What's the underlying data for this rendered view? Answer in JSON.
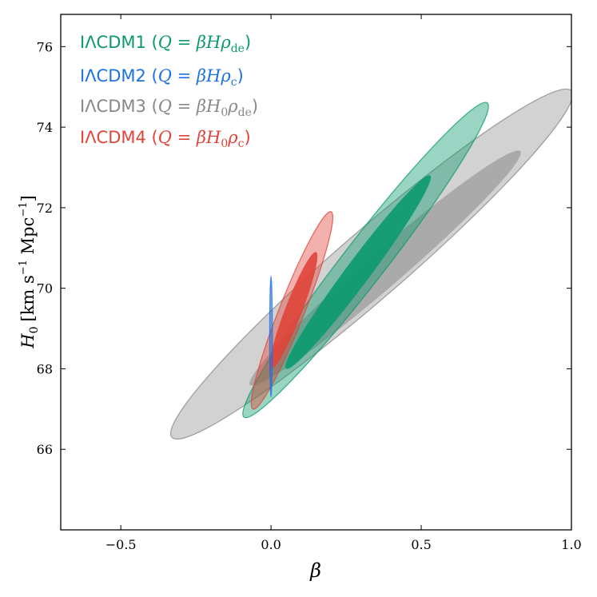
{
  "chart_data": {
    "type": "contour",
    "xlabel": "β",
    "ylabel": "H₀ [km s⁻¹ Mpc⁻¹]",
    "xlim": [
      -0.7,
      1.0
    ],
    "ylim": [
      64.0,
      76.8
    ],
    "xticks": [
      -0.5,
      0.0,
      0.5,
      1.0
    ],
    "xtick_labels": [
      "−0.5",
      "0.0",
      "0.5",
      "1.0"
    ],
    "yticks": [
      66,
      68,
      70,
      72,
      74,
      76
    ],
    "ytick_labels": [
      "66",
      "68",
      "70",
      "72",
      "74",
      "76"
    ],
    "legend_placement": "top-left",
    "series": [
      {
        "name": "IΛCDM1 (Q = βHρ_de)",
        "color": "#0b9a6e",
        "regions": [
          {
            "level": "95%",
            "center": [
              0.31,
              70.7
            ],
            "ends": [
              [
                -0.09,
                66.8
              ],
              [
                0.72,
                74.6
              ]
            ],
            "halfwidth_beta": 0.09
          },
          {
            "level": "68%",
            "center": [
              0.29,
              70.3
            ],
            "ends": [
              [
                0.05,
                68.0
              ],
              [
                0.53,
                72.8
              ]
            ],
            "halfwidth_beta": 0.05
          }
        ]
      },
      {
        "name": "IΛCDM2 (Q = βHρ_c)",
        "color": "#1c72e0",
        "regions": [
          {
            "level": "95%",
            "center": [
              0.0,
              68.8
            ],
            "ends": [
              [
                0.0,
                67.3
              ],
              [
                0.0,
                70.3
              ]
            ],
            "halfwidth_beta": 0.004
          }
        ]
      },
      {
        "name": "IΛCDM3 (Q = βH₀ρ_de)",
        "color": "#888888",
        "regions": [
          {
            "level": "95%",
            "center": [
              0.33,
              70.6
            ],
            "ends": [
              [
                -0.33,
                66.3
              ],
              [
                1.0,
                74.9
              ]
            ],
            "halfwidth_beta": 0.17
          },
          {
            "level": "68%",
            "center": [
              0.38,
              70.6
            ],
            "ends": [
              [
                -0.07,
                67.6
              ],
              [
                0.83,
                73.4
              ]
            ],
            "halfwidth_beta": 0.09
          }
        ]
      },
      {
        "name": "IΛCDM4 (Q = βH₀ρ_c)",
        "color": "#e0443a",
        "regions": [
          {
            "level": "95%",
            "center": [
              0.07,
              69.4
            ],
            "ends": [
              [
                -0.06,
                67.0
              ],
              [
                0.2,
                71.9
              ]
            ],
            "halfwidth_beta": 0.045
          },
          {
            "level": "68%",
            "center": [
              0.07,
              69.4
            ],
            "ends": [
              [
                0.0,
                68.0
              ],
              [
                0.15,
                70.9
              ]
            ],
            "halfwidth_beta": 0.03
          }
        ]
      }
    ]
  },
  "legend": {
    "item1": {
      "prefix": "IΛCDM1 (",
      "formula": "Q = βHρ",
      "sub": "de",
      "suffix": ")",
      "color": "#0b9a6e"
    },
    "item2": {
      "prefix": "IΛCDM2 (",
      "formula": "Q = βHρ",
      "sub": "c",
      "suffix": ")",
      "color": "#1c72e0"
    },
    "item3": {
      "prefix": "IΛCDM3 (",
      "formula": "Q = βH",
      "sub0": "0",
      "formula2": "ρ",
      "sub": "de",
      "suffix": ")",
      "color": "#888888"
    },
    "item4": {
      "prefix": "IΛCDM4 (",
      "formula": "Q = βH",
      "sub0": "0",
      "formula2": "ρ",
      "sub": "c",
      "suffix": ")",
      "color": "#e0443a"
    }
  },
  "axes": {
    "x_title": "β",
    "y_title_main": "H",
    "y_title_sub": "0",
    "y_title_units": "[km s",
    "y_title_exp": "−1",
    "y_title_units2": " Mpc",
    "y_title_exp2": "−1",
    "y_title_close": "]"
  }
}
